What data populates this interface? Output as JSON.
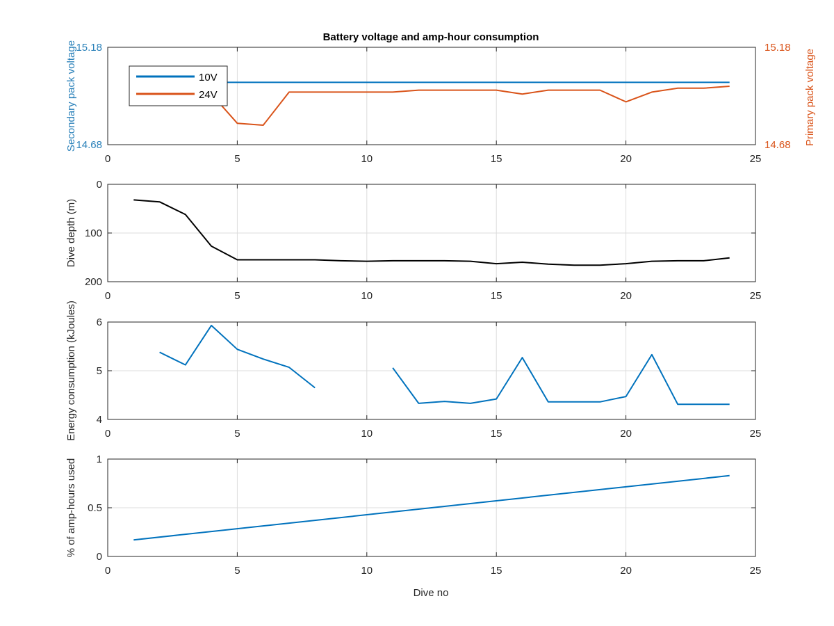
{
  "figure": {
    "title": "Battery voltage and amp-hour consumption",
    "xlabel": "Dive no"
  },
  "colors": {
    "blue": "#0072bd",
    "orange": "#d95319",
    "black": "#000000",
    "left_axis": "#2980b9",
    "right_axis": "#d95319"
  },
  "chart_data": [
    {
      "type": "line",
      "xlim": [
        0,
        25
      ],
      "xticks": [
        "0",
        "5",
        "10",
        "15",
        "20",
        "25"
      ],
      "ylabel_left": "Secondary pack voltage",
      "ylabel_right": "Primary pack voltage",
      "ylim": [
        14.68,
        15.18
      ],
      "yticks_left": [
        "14.68",
        "15.18"
      ],
      "yticks_right": [
        "14.68",
        "15.18"
      ],
      "legend_position": "top-left",
      "series": [
        {
          "name": "10V",
          "x": [
            4,
            24
          ],
          "y": [
            15.0,
            15.0
          ]
        },
        {
          "name": "24V",
          "x": [
            4,
            5,
            6,
            7,
            8,
            9,
            10,
            11,
            12,
            13,
            14,
            15,
            16,
            17,
            18,
            19,
            20,
            21,
            22,
            23,
            24
          ],
          "y": [
            14.94,
            14.79,
            14.78,
            14.95,
            14.95,
            14.95,
            14.95,
            14.95,
            14.96,
            14.96,
            14.96,
            14.96,
            14.94,
            14.96,
            14.96,
            14.96,
            14.9,
            14.95,
            14.97,
            14.97,
            14.98
          ]
        }
      ]
    },
    {
      "type": "line",
      "xlim": [
        0,
        25
      ],
      "xticks": [
        "0",
        "5",
        "10",
        "15",
        "20",
        "25"
      ],
      "ylabel": "Dive depth (m)",
      "ylim": [
        0,
        200
      ],
      "y_reversed": true,
      "yticks": [
        "0",
        "100",
        "200"
      ],
      "series": [
        {
          "x": [
            1,
            2,
            3,
            4,
            5,
            6,
            7,
            8,
            9,
            10,
            11,
            12,
            13,
            14,
            15,
            16,
            17,
            18,
            19,
            20,
            21,
            22,
            23,
            24
          ],
          "y": [
            32,
            36,
            62,
            127,
            155,
            155,
            155,
            155,
            157,
            158,
            157,
            157,
            157,
            158,
            163,
            160,
            164,
            166,
            166,
            163,
            158,
            157,
            157,
            151
          ]
        }
      ]
    },
    {
      "type": "line",
      "xlim": [
        0,
        25
      ],
      "xticks": [
        "0",
        "5",
        "10",
        "15",
        "20",
        "25"
      ],
      "ylabel": "Energy consumption (kJoules)",
      "ylim": [
        4,
        6
      ],
      "yticks": [
        "4",
        "5",
        "6"
      ],
      "series": [
        {
          "x": [
            2,
            3,
            4,
            5,
            6,
            7,
            8
          ],
          "y": [
            5.38,
            5.12,
            5.93,
            5.44,
            5.24,
            5.07,
            4.65
          ]
        },
        {
          "x": [
            11,
            12,
            13,
            14,
            15,
            16,
            17,
            18,
            19,
            20,
            21,
            22,
            23,
            24
          ],
          "y": [
            5.06,
            4.33,
            4.37,
            4.33,
            4.42,
            5.27,
            4.36,
            4.36,
            4.36,
            4.47,
            5.33,
            4.31,
            4.31,
            4.31
          ]
        }
      ]
    },
    {
      "type": "line",
      "xlim": [
        0,
        25
      ],
      "xticks": [
        "0",
        "5",
        "10",
        "15",
        "20",
        "25"
      ],
      "ylabel": "% of amp-hours used",
      "ylim": [
        0,
        1
      ],
      "yticks": [
        "0",
        "0.5",
        "1"
      ],
      "series": [
        {
          "x": [
            1,
            24
          ],
          "y": [
            0.17,
            0.83
          ]
        }
      ]
    }
  ]
}
